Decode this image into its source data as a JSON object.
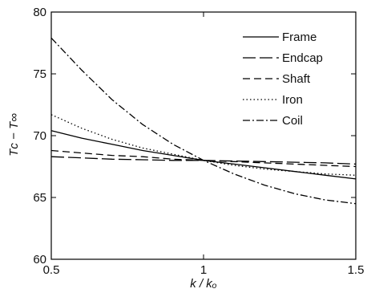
{
  "chart_data": {
    "type": "line",
    "title": "",
    "xlabel": "k / kₒ",
    "ylabel": "Tᴄ − T∞",
    "xlim": [
      0.5,
      1.5
    ],
    "ylim": [
      60,
      80
    ],
    "xticks": [
      0.5,
      1,
      1.5
    ],
    "xtick_labels": [
      "0.5",
      "1",
      "1.5"
    ],
    "yticks": [
      60,
      65,
      70,
      75,
      80
    ],
    "ytick_labels": [
      "60",
      "65",
      "70",
      "75",
      "80"
    ],
    "grid": false,
    "legend_position": "top-right",
    "series": [
      {
        "name": "Frame",
        "style": "solid",
        "x": [
          0.5,
          0.6,
          0.7,
          0.8,
          0.9,
          1.0,
          1.1,
          1.2,
          1.3,
          1.4,
          1.5
        ],
        "y": [
          70.4,
          69.8,
          69.3,
          68.8,
          68.4,
          68.0,
          67.7,
          67.4,
          67.1,
          66.8,
          66.5
        ]
      },
      {
        "name": "Endcap",
        "style": "long-dash",
        "x": [
          0.5,
          0.6,
          0.7,
          0.8,
          0.9,
          1.0,
          1.1,
          1.2,
          1.3,
          1.4,
          1.5
        ],
        "y": [
          68.3,
          68.2,
          68.1,
          68.05,
          68.0,
          68.0,
          67.95,
          67.9,
          67.85,
          67.8,
          67.7
        ]
      },
      {
        "name": "Shaft",
        "style": "short-dash",
        "x": [
          0.5,
          0.6,
          0.7,
          0.8,
          0.9,
          1.0,
          1.1,
          1.2,
          1.3,
          1.4,
          1.5
        ],
        "y": [
          68.8,
          68.6,
          68.4,
          68.3,
          68.1,
          68.0,
          67.9,
          67.8,
          67.7,
          67.6,
          67.5
        ]
      },
      {
        "name": "Iron",
        "style": "dotted",
        "x": [
          0.5,
          0.6,
          0.7,
          0.8,
          0.9,
          1.0,
          1.1,
          1.2,
          1.3,
          1.4,
          1.5
        ],
        "y": [
          71.7,
          70.6,
          69.7,
          69.0,
          68.5,
          68.0,
          67.6,
          67.3,
          67.1,
          66.9,
          66.8
        ]
      },
      {
        "name": "Coil",
        "style": "dash-dot",
        "x": [
          0.5,
          0.6,
          0.7,
          0.8,
          0.9,
          1.0,
          1.1,
          1.2,
          1.3,
          1.4,
          1.5
        ],
        "y": [
          77.9,
          75.3,
          72.9,
          70.9,
          69.3,
          68.0,
          66.9,
          66.0,
          65.3,
          64.8,
          64.5
        ]
      }
    ]
  }
}
